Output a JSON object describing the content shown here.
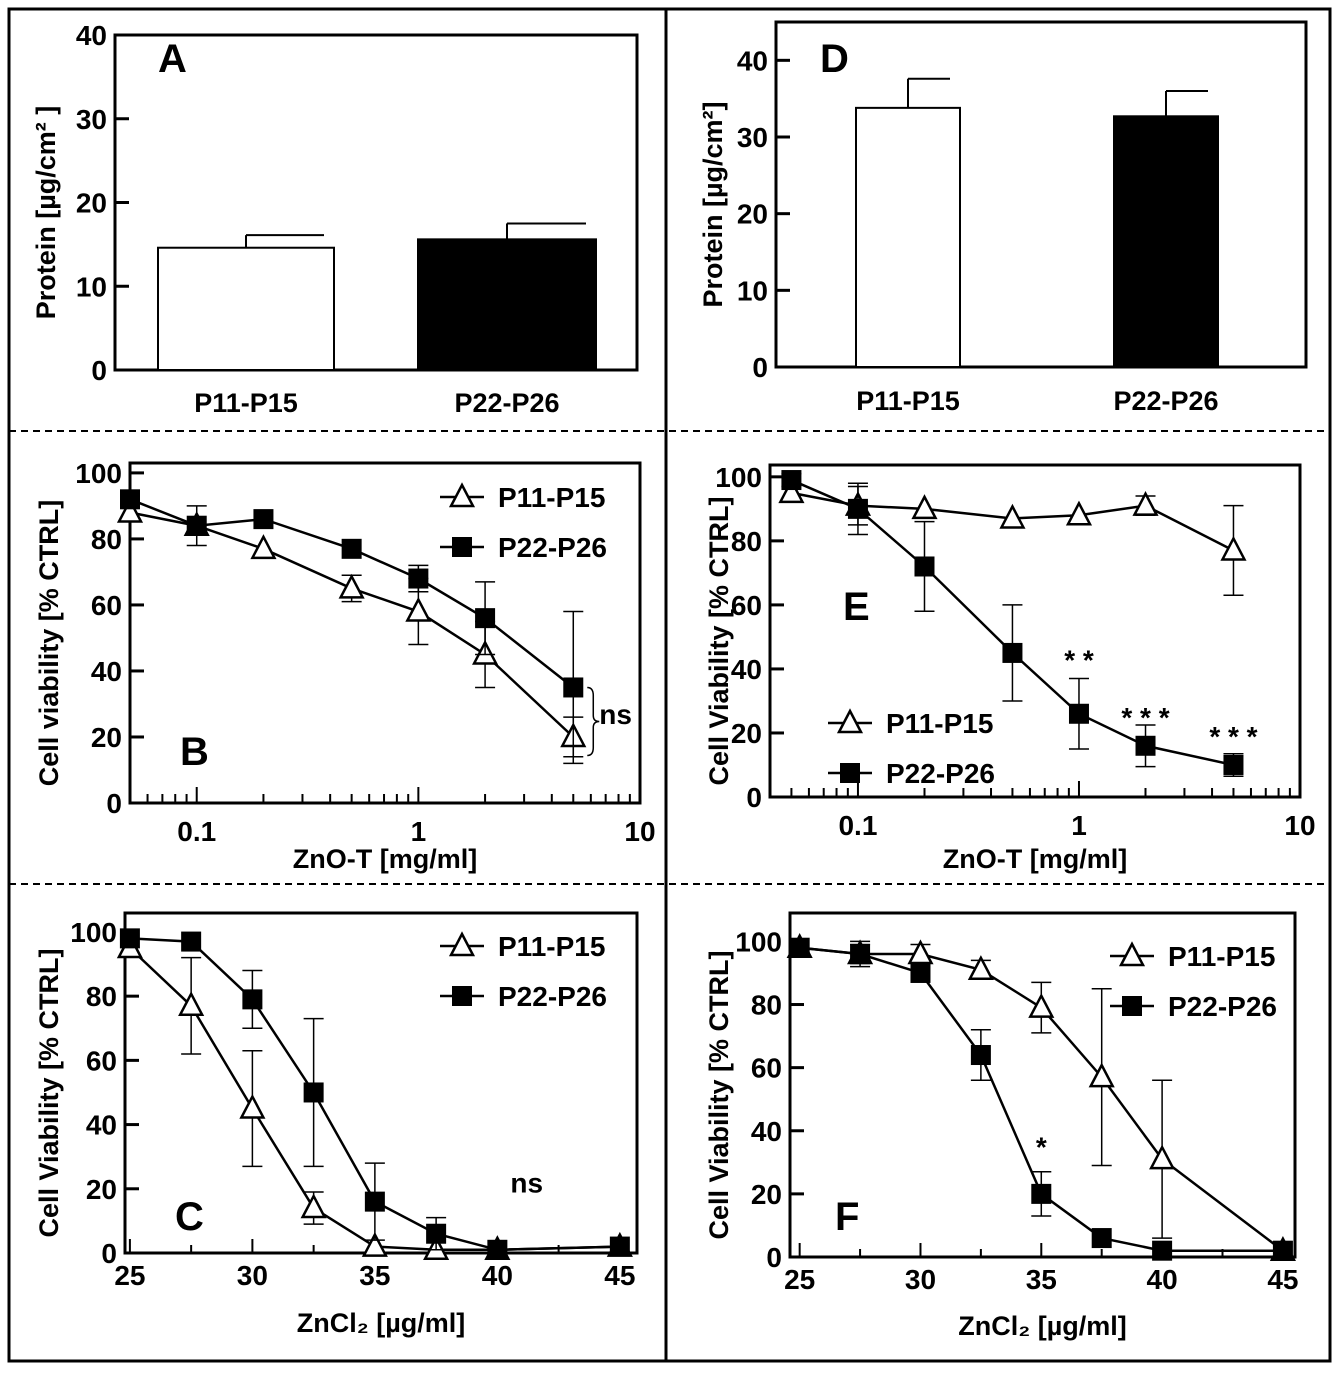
{
  "chart_data": [
    {
      "panel": "A",
      "type": "bar",
      "ylabel": "Protein [µg/cm² ]",
      "ylim": [
        0,
        40
      ],
      "yticks": [
        0,
        10,
        20,
        30,
        40
      ],
      "categories": [
        "P11-P15",
        "P22-P26"
      ],
      "values": [
        14.6,
        15.6
      ],
      "errors": [
        1.5,
        1.9
      ],
      "bar_colors": [
        "#ffffff",
        "#000000"
      ]
    },
    {
      "panel": "D",
      "type": "bar",
      "ylabel": "Protein [µg/cm²]",
      "ylim": [
        0,
        45
      ],
      "yticks": [
        0,
        10,
        20,
        30,
        40
      ],
      "categories": [
        "P11-P15",
        "P22-P26"
      ],
      "values": [
        33.8,
        32.7
      ],
      "errors": [
        3.8,
        3.3
      ],
      "bar_colors": [
        "#ffffff",
        "#000000"
      ]
    },
    {
      "panel": "B",
      "type": "line",
      "xscale": "log",
      "xlabel": "ZnO-T [mg/ml]",
      "ylabel": "Cell viability [% CTRL]",
      "xlim": [
        0.05,
        10
      ],
      "ylim": [
        0,
        103
      ],
      "xticks": [
        "0.1",
        "1",
        "10"
      ],
      "yticks": [
        0,
        20,
        40,
        60,
        80,
        100
      ],
      "legend": "top-right",
      "x": [
        0.05,
        0.1,
        0.2,
        0.5,
        1,
        2,
        5
      ],
      "series": [
        {
          "name": "P11-P15",
          "marker": "open-triangle",
          "values": [
            88,
            84,
            77,
            65,
            58,
            45,
            20
          ],
          "errors": [
            0,
            0,
            0,
            4,
            10,
            10,
            6
          ]
        },
        {
          "name": "P22-P26",
          "marker": "filled-square",
          "values": [
            92,
            84,
            86,
            77,
            68,
            56,
            35
          ],
          "errors": [
            0,
            6,
            0,
            0,
            4,
            11,
            23
          ]
        }
      ],
      "annotations": [
        {
          "text": "ns",
          "x": 5,
          "y": 27
        }
      ]
    },
    {
      "panel": "E",
      "type": "line",
      "xscale": "log",
      "xlabel": "ZnO-T [mg/ml]",
      "ylabel": "Cell Viability [% CTRL]",
      "xlim": [
        0.04,
        10
      ],
      "ylim": [
        0,
        103.7
      ],
      "xticks": [
        "0.1",
        "1",
        "10"
      ],
      "yticks": [
        0,
        20,
        40,
        60,
        80,
        100
      ],
      "legend": "bottom-left",
      "x": [
        0.05,
        0.1,
        0.2,
        0.5,
        1,
        2,
        5
      ],
      "series": [
        {
          "name": "P11-P15",
          "marker": "open-triangle",
          "values": [
            95,
            91,
            90,
            87,
            88,
            91,
            77
          ],
          "errors": [
            0,
            6,
            0,
            0,
            0,
            3,
            14
          ]
        },
        {
          "name": "P22-P26",
          "marker": "filled-square",
          "values": [
            99,
            90,
            72,
            45,
            26,
            16,
            10
          ],
          "errors": [
            2,
            8,
            14,
            15,
            11,
            6.5,
            3.5
          ]
        }
      ],
      "annotations": [
        {
          "text": "* *",
          "x": 1,
          "y": 43
        },
        {
          "text": "* * *",
          "x": 2,
          "y": 25
        },
        {
          "text": "* * *",
          "x": 5,
          "y": 19
        }
      ]
    },
    {
      "panel": "C",
      "type": "line",
      "xscale": "linear",
      "xlabel": "ZnCl₂ [µg/ml]",
      "ylabel": "Cell Viability [% CTRL]",
      "xlim": [
        24.8,
        45.7
      ],
      "ylim": [
        0,
        105.9
      ],
      "xticks": [
        "25",
        "30",
        "35",
        "40",
        "45"
      ],
      "yticks": [
        0,
        20,
        40,
        60,
        80,
        100
      ],
      "legend": "top-right",
      "x": [
        25,
        27.5,
        30,
        32.5,
        35,
        37.5,
        40,
        45
      ],
      "series": [
        {
          "name": "P11-P15",
          "marker": "open-triangle",
          "values": [
            95,
            77,
            45,
            14,
            2,
            1,
            1,
            2
          ],
          "errors": [
            0,
            15,
            18,
            5,
            0,
            0,
            0,
            0
          ]
        },
        {
          "name": "P22-P26",
          "marker": "filled-square",
          "values": [
            98,
            97,
            79,
            50,
            16,
            6,
            1,
            2
          ],
          "errors": [
            0,
            0,
            9,
            23,
            12,
            5,
            0,
            0
          ]
        }
      ],
      "annotations": [
        {
          "text": "ns",
          "x": 41.2,
          "y": 22
        }
      ]
    },
    {
      "panel": "F",
      "type": "line",
      "xscale": "linear",
      "xlabel": "ZnCl₂ [µg/ml]",
      "ylabel": "Cell Viability [% CTRL]",
      "xlim": [
        24.6,
        45.5
      ],
      "ylim": [
        0,
        109
      ],
      "xticks": [
        "25",
        "30",
        "35",
        "40",
        "45"
      ],
      "yticks": [
        0,
        20,
        40,
        60,
        80,
        100
      ],
      "legend": "top-right",
      "x": [
        25,
        27.5,
        30,
        32.5,
        35,
        37.5,
        40,
        45
      ],
      "series": [
        {
          "name": "P11-P15",
          "marker": "open-triangle",
          "values": [
            98,
            96,
            96,
            91,
            79,
            57,
            31,
            2
          ],
          "errors": [
            0,
            3,
            3,
            3,
            8,
            28,
            25,
            0
          ]
        },
        {
          "name": "P22-P26",
          "marker": "filled-square",
          "values": [
            98,
            96,
            90,
            64,
            20,
            6,
            2,
            2
          ],
          "errors": [
            0,
            4,
            0,
            8,
            7,
            0,
            0,
            0
          ]
        }
      ],
      "annotations": [
        {
          "text": "*",
          "x": 35,
          "y": 35
        }
      ]
    }
  ]
}
